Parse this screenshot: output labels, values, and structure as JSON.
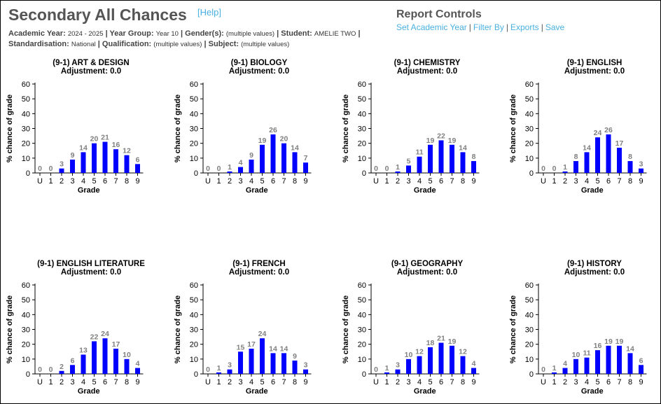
{
  "page": {
    "title": "Secondary All Chances",
    "help_label": "[Help]"
  },
  "filters": {
    "academic_year_label": "Academic Year:",
    "academic_year_value": "2024 - 2025",
    "year_group_label": "Year Group:",
    "year_group_value": "Year 10",
    "genders_label": "Gender(s):",
    "genders_value": "(multiple values)",
    "student_label": "Student:",
    "student_value": "AMELIE TWO",
    "standardisation_label": "Standardisation:",
    "standardisation_value": "National",
    "qualification_label": "Qualification:",
    "qualification_value": "(multiple values)",
    "subject_label": "Subject:",
    "subject_value": "(multiple values)"
  },
  "report_controls": {
    "title": "Report Controls",
    "links": [
      "Set Academic Year",
      "Filter By",
      "Exports",
      "Save"
    ]
  },
  "colors": {
    "bar": "#0000ff",
    "value_label": "#808080",
    "link": "#4ab0e0",
    "title": "#555555"
  },
  "chart_data": [
    {
      "type": "bar",
      "title": "(9-1) ART & DESIGN",
      "subtitle": "Adjustment: 0.0",
      "xlabel": "Grade",
      "ylabel": "% chance of grade",
      "ylim": [
        0,
        60
      ],
      "yticks": [
        0,
        10,
        20,
        30,
        40,
        50,
        60
      ],
      "categories": [
        "U",
        "1",
        "2",
        "3",
        "4",
        "5",
        "6",
        "7",
        "8",
        "9"
      ],
      "values": [
        0,
        0,
        3,
        9,
        14,
        20,
        21,
        16,
        12,
        6
      ]
    },
    {
      "type": "bar",
      "title": "(9-1) BIOLOGY",
      "subtitle": "Adjustment: 0.0",
      "xlabel": "Grade",
      "ylabel": "% chance of grade",
      "ylim": [
        0,
        60
      ],
      "yticks": [
        0,
        10,
        20,
        30,
        40,
        50,
        60
      ],
      "categories": [
        "U",
        "1",
        "2",
        "3",
        "4",
        "5",
        "6",
        "7",
        "8",
        "9"
      ],
      "values": [
        0,
        0,
        1,
        4,
        9,
        19,
        26,
        20,
        14,
        7
      ]
    },
    {
      "type": "bar",
      "title": "(9-1) CHEMISTRY",
      "subtitle": "Adjustment: 0.0",
      "xlabel": "Grade",
      "ylabel": "% chance of grade",
      "ylim": [
        0,
        60
      ],
      "yticks": [
        0,
        10,
        20,
        30,
        40,
        50,
        60
      ],
      "categories": [
        "U",
        "1",
        "2",
        "3",
        "4",
        "5",
        "6",
        "7",
        "8",
        "9"
      ],
      "values": [
        0,
        0,
        1,
        5,
        11,
        19,
        22,
        19,
        14,
        8
      ]
    },
    {
      "type": "bar",
      "title": "(9-1) ENGLISH",
      "subtitle": "Adjustment: 0.0",
      "xlabel": "Grade",
      "ylabel": "% chance of grade",
      "ylim": [
        0,
        60
      ],
      "yticks": [
        0,
        10,
        20,
        30,
        40,
        50,
        60
      ],
      "categories": [
        "U",
        "1",
        "2",
        "3",
        "4",
        "5",
        "6",
        "7",
        "8",
        "9"
      ],
      "values": [
        0,
        0,
        1,
        8,
        14,
        24,
        26,
        17,
        8,
        3
      ]
    },
    {
      "type": "bar",
      "title": "(9-1) ENGLISH LITERATURE",
      "subtitle": "Adjustment: 0.0",
      "xlabel": "Grade",
      "ylabel": "% chance of grade",
      "ylim": [
        0,
        60
      ],
      "yticks": [
        0,
        10,
        20,
        30,
        40,
        50,
        60
      ],
      "categories": [
        "U",
        "1",
        "2",
        "3",
        "4",
        "5",
        "6",
        "7",
        "8",
        "9"
      ],
      "values": [
        0,
        0,
        2,
        6,
        13,
        22,
        24,
        17,
        10,
        4
      ]
    },
    {
      "type": "bar",
      "title": "(9-1) FRENCH",
      "subtitle": "Adjustment: 0.0",
      "xlabel": "Grade",
      "ylabel": "% chance of grade",
      "ylim": [
        0,
        60
      ],
      "yticks": [
        0,
        10,
        20,
        30,
        40,
        50,
        60
      ],
      "categories": [
        "U",
        "1",
        "2",
        "3",
        "4",
        "5",
        "6",
        "7",
        "8",
        "9"
      ],
      "values": [
        0,
        1,
        3,
        15,
        17,
        24,
        14,
        14,
        9,
        3
      ]
    },
    {
      "type": "bar",
      "title": "(9-1) GEOGRAPHY",
      "subtitle": "Adjustment: 0.0",
      "xlabel": "Grade",
      "ylabel": "% chance of grade",
      "ylim": [
        0,
        60
      ],
      "yticks": [
        0,
        10,
        20,
        30,
        40,
        50,
        60
      ],
      "categories": [
        "U",
        "1",
        "2",
        "3",
        "4",
        "5",
        "6",
        "7",
        "8",
        "9"
      ],
      "values": [
        0,
        1,
        3,
        10,
        12,
        18,
        21,
        19,
        12,
        4
      ]
    },
    {
      "type": "bar",
      "title": "(9-1) HISTORY",
      "subtitle": "Adjustment: 0.0",
      "xlabel": "Grade",
      "ylabel": "% chance of grade",
      "ylim": [
        0,
        60
      ],
      "yticks": [
        0,
        10,
        20,
        30,
        40,
        50,
        60
      ],
      "categories": [
        "U",
        "1",
        "2",
        "3",
        "4",
        "5",
        "6",
        "7",
        "8",
        "9"
      ],
      "values": [
        0,
        1,
        4,
        10,
        11,
        16,
        19,
        19,
        14,
        6
      ]
    }
  ]
}
